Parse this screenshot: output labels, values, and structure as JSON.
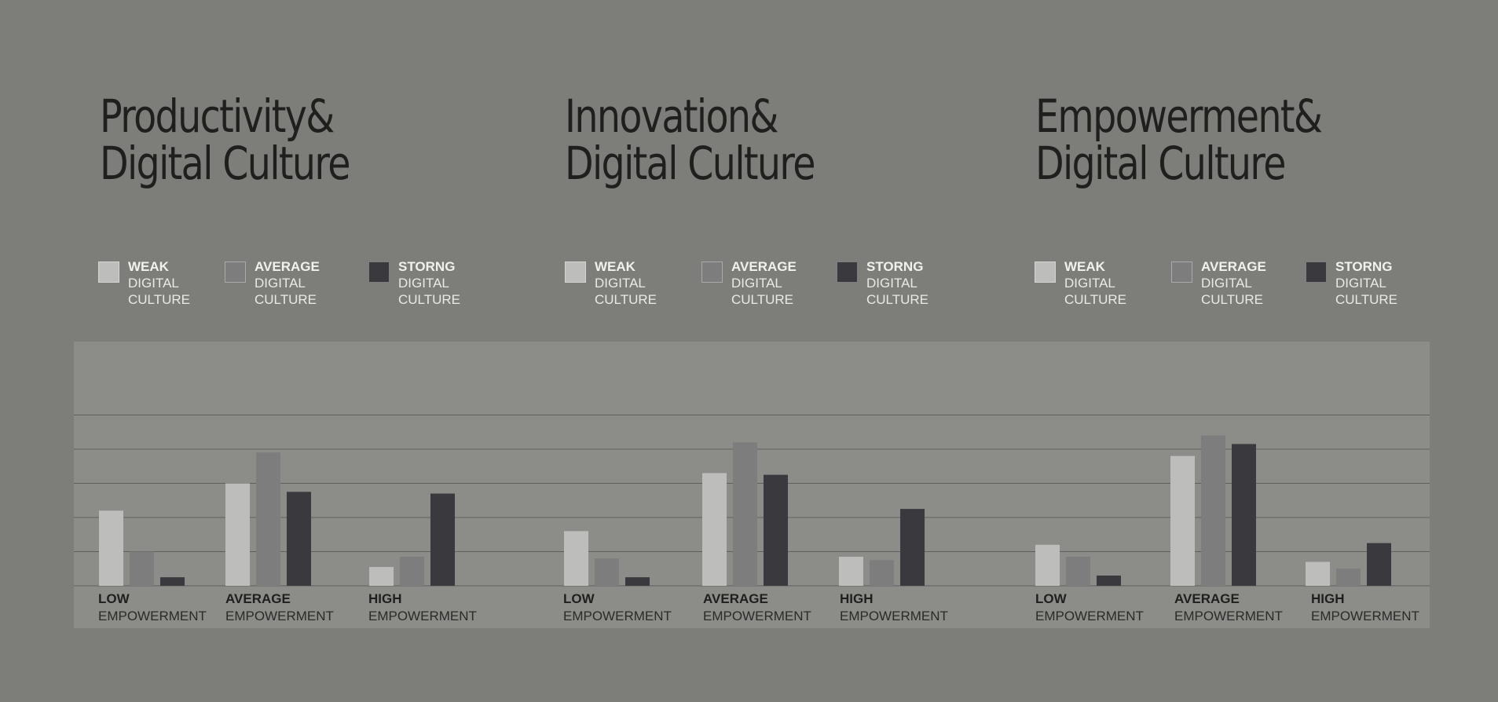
{
  "colors": {
    "background": "#7d7e7a",
    "panel": "#8c8d88",
    "weak": "#bdbdbb",
    "average": "#7c7d7c",
    "strong": "#3a3a3e",
    "gridline": "#5f605d",
    "title": "#1f1f1e"
  },
  "chart_data": [
    {
      "type": "bar",
      "title": [
        "Productivity&",
        "Digital Culture"
      ],
      "legend": [
        {
          "key": "weak",
          "lines": [
            "WEAK",
            "DIGITAL",
            "CULTURE"
          ]
        },
        {
          "key": "average",
          "lines": [
            "AVERAGE",
            "DIGITAL",
            "CULTURE"
          ]
        },
        {
          "key": "strong",
          "lines": [
            "STORNG",
            "DIGITAL",
            "CULTURE"
          ]
        }
      ],
      "categories": [
        {
          "lines": [
            "LOW",
            "EMPOWERMENT"
          ]
        },
        {
          "lines": [
            "AVERAGE",
            "EMPOWERMENT"
          ]
        },
        {
          "lines": [
            "HIGH",
            "EMPOWERMENT"
          ]
        }
      ],
      "series": [
        {
          "name": "WEAK DIGITAL CULTURE",
          "values": [
            2.2,
            3.0,
            0.55
          ]
        },
        {
          "name": "AVERAGE DIGITAL CULTURE",
          "values": [
            1.0,
            3.9,
            0.85
          ]
        },
        {
          "name": "STORNG DIGITAL CULTURE",
          "values": [
            0.25,
            2.75,
            2.7
          ]
        }
      ],
      "ylim": [
        0,
        5
      ],
      "grid": true
    },
    {
      "type": "bar",
      "title": [
        "Innovation&",
        "Digital Culture"
      ],
      "legend": [
        {
          "key": "weak",
          "lines": [
            "WEAK",
            "DIGITAL",
            "CULTURE"
          ]
        },
        {
          "key": "average",
          "lines": [
            "AVERAGE",
            "DIGITAL",
            "CULTURE"
          ]
        },
        {
          "key": "strong",
          "lines": [
            "STORNG",
            "DIGITAL",
            "CULTURE"
          ]
        }
      ],
      "categories": [
        {
          "lines": [
            "LOW",
            "EMPOWERMENT"
          ]
        },
        {
          "lines": [
            "AVERAGE",
            "EMPOWERMENT"
          ]
        },
        {
          "lines": [
            "HIGH",
            "EMPOWERMENT"
          ]
        }
      ],
      "series": [
        {
          "name": "WEAK DIGITAL CULTURE",
          "values": [
            1.6,
            3.3,
            0.85
          ]
        },
        {
          "name": "AVERAGE DIGITAL CULTURE",
          "values": [
            0.8,
            4.2,
            0.75
          ]
        },
        {
          "name": "STORNG DIGITAL CULTURE",
          "values": [
            0.25,
            3.25,
            2.25
          ]
        }
      ],
      "ylim": [
        0,
        5
      ],
      "grid": true
    },
    {
      "type": "bar",
      "title": [
        "Empowerment&",
        "Digital Culture"
      ],
      "legend": [
        {
          "key": "weak",
          "lines": [
            "WEAK",
            "DIGITAL",
            "CULTURE"
          ]
        },
        {
          "key": "average",
          "lines": [
            "AVERAGE",
            "DIGITAL",
            "CULTURE"
          ]
        },
        {
          "key": "strong",
          "lines": [
            "STORNG",
            "DIGITAL",
            "CULTURE"
          ]
        }
      ],
      "categories": [
        {
          "lines": [
            "LOW",
            "EMPOWERMENT"
          ]
        },
        {
          "lines": [
            "AVERAGE",
            "EMPOWERMENT"
          ]
        },
        {
          "lines": [
            "HIGH",
            "EMPOWERMENT"
          ]
        }
      ],
      "series": [
        {
          "name": "WEAK DIGITAL CULTURE",
          "values": [
            1.2,
            3.8,
            0.7
          ]
        },
        {
          "name": "AVERAGE DIGITAL CULTURE",
          "values": [
            0.85,
            4.4,
            0.5
          ]
        },
        {
          "name": "STORNG DIGITAL CULTURE",
          "values": [
            0.3,
            4.15,
            1.25
          ]
        }
      ],
      "ylim": [
        0,
        5
      ],
      "grid": true
    }
  ]
}
